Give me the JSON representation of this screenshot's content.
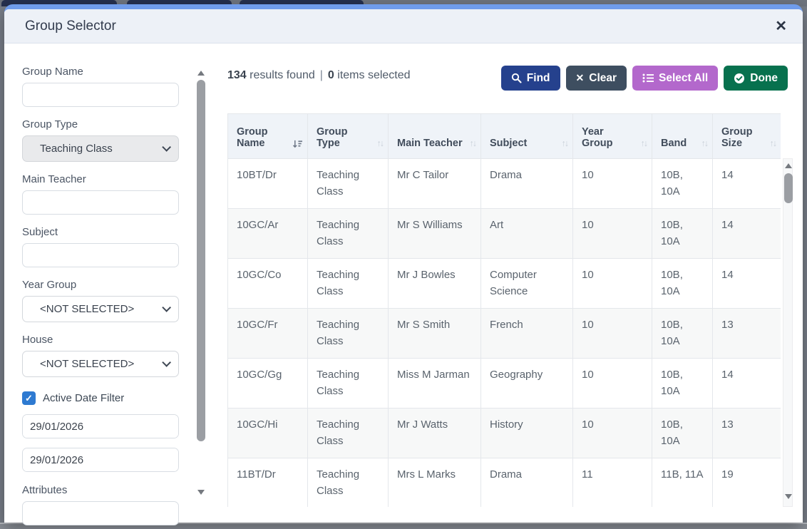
{
  "modal": {
    "title": "Group Selector",
    "close_glyph": "✕"
  },
  "filters": {
    "group_name": {
      "label": "Group Name",
      "value": ""
    },
    "group_type": {
      "label": "Group Type",
      "value": "Teaching Class"
    },
    "main_teacher": {
      "label": "Main Teacher",
      "value": ""
    },
    "subject": {
      "label": "Subject",
      "value": ""
    },
    "year_group": {
      "label": "Year Group",
      "value": "<NOT SELECTED>"
    },
    "house": {
      "label": "House",
      "value": "<NOT SELECTED>"
    },
    "active_date_filter": {
      "label": "Active Date Filter",
      "checked": true,
      "check_glyph": "✓"
    },
    "date_from": {
      "value": "29/01/2026"
    },
    "date_to": {
      "value": "29/01/2026"
    },
    "attributes": {
      "label": "Attributes",
      "value": ""
    }
  },
  "results": {
    "count": "134",
    "count_suffix": " results found",
    "separator": "|",
    "selected": "0",
    "selected_suffix": " items selected"
  },
  "toolbar": {
    "find": "Find",
    "clear": "Clear",
    "select_all": "Select All",
    "done": "Done",
    "clear_glyph": "✕"
  },
  "table": {
    "columns": [
      {
        "label": "Group Name",
        "sorted": true
      },
      {
        "label": "Group Type",
        "sorted": false
      },
      {
        "label": "Main Teacher",
        "sorted": false
      },
      {
        "label": "Subject",
        "sorted": false
      },
      {
        "label": "Year Group",
        "sorted": false
      },
      {
        "label": "Band",
        "sorted": false
      },
      {
        "label": "Group Size",
        "sorted": false
      }
    ],
    "unsorted_glyph": "↑↓",
    "rows": [
      [
        "10BT/Dr",
        "Teaching Class",
        "Mr C Tailor",
        "Drama",
        "10",
        "10B, 10A",
        "14"
      ],
      [
        "10GC/Ar",
        "Teaching Class",
        "Mr S Williams",
        "Art",
        "10",
        "10B, 10A",
        "14"
      ],
      [
        "10GC/Co",
        "Teaching Class",
        "Mr J Bowles",
        "Computer Science",
        "10",
        "10B, 10A",
        "14"
      ],
      [
        "10GC/Fr",
        "Teaching Class",
        "Mr S Smith",
        "French",
        "10",
        "10B, 10A",
        "13"
      ],
      [
        "10GC/Gg",
        "Teaching Class",
        "Miss M Jarman",
        "Geography",
        "10",
        "10B, 10A",
        "14"
      ],
      [
        "10GC/Hi",
        "Teaching Class",
        "Mr J Watts",
        "History",
        "10",
        "10B, 10A",
        "13"
      ],
      [
        "11BT/Dr",
        "Teaching Class",
        "Mrs L Marks",
        "Drama",
        "11",
        "11B, 11A",
        "19"
      ]
    ]
  },
  "colors": {
    "modal_top_border": "#6f9ceb",
    "header_bg": "#edf1f7",
    "find_btn": "#25418d",
    "clear_btn": "#3e4e60",
    "select_all_btn": "#b368cc",
    "done_btn": "#07714e",
    "checkbox": "#2e7ad1",
    "table_header_bg": "#eff3f8",
    "row_alt_bg": "#f7f8f8"
  }
}
